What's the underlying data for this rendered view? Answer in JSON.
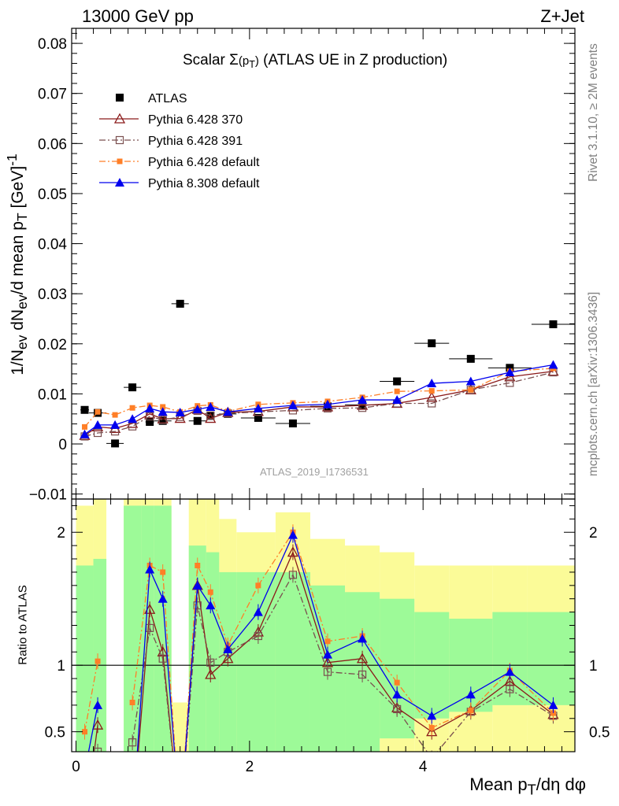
{
  "header": {
    "left": "13000 GeV pp",
    "right": "Z+Jet"
  },
  "side_text": {
    "rivet": "Rivet 3.1.10, ≥ 2M events",
    "mcplots": "mcplots.cern.ch [arXiv:1306.3436]"
  },
  "watermark": "ATLAS_2019_I1736531",
  "ratio_ylabel": "Ratio to ATLAS",
  "colors": {
    "atlas": "#000000",
    "p370": "#8b1a1a",
    "p391": "#7a4f4f",
    "p6def": "#ff7f27",
    "p8def": "#0000ee",
    "band_inner": "#9dfa98",
    "band_outer": "#fbfb98"
  },
  "chart_data": [
    {
      "type": "scatter",
      "title": "Scalar Σ(p_T) (ATLAS UE in Z production)",
      "xlabel": "Mean p_T/dη dφ",
      "ylabel": "1/N_ev dN_ev/d mean p_T [GeV]^-1",
      "xlim": [
        -0.05,
        5.75
      ],
      "ylim": [
        -0.011,
        0.083
      ],
      "grid": false,
      "legend": "top-left",
      "x": [
        0.1,
        0.25,
        0.45,
        0.65,
        0.85,
        1.0,
        1.2,
        1.4,
        1.55,
        1.75,
        2.1,
        2.5,
        2.9,
        3.3,
        3.7,
        4.1,
        4.55,
        5.0,
        5.5
      ],
      "x_err": [
        0.05,
        0.1,
        0.1,
        0.1,
        0.05,
        0.1,
        0.1,
        0.1,
        0.05,
        0.1,
        0.2,
        0.2,
        0.2,
        0.2,
        0.2,
        0.2,
        0.25,
        0.25,
        0.25
      ],
      "series": [
        {
          "name": "ATLAS",
          "key": "atlas",
          "line": "none",
          "marker": "filled-square",
          "values": [
            0.0068,
            0.0062,
            0.0001,
            0.0113,
            0.0044,
            0.0046,
            0.028,
            0.0046,
            0.0056,
            0.006,
            0.0052,
            0.0041,
            0.0075,
            0.0078,
            0.0125,
            0.0201,
            0.017,
            0.0152,
            0.0239
          ],
          "errors": [
            0.0003,
            0.0003,
            0.0003,
            0.0004,
            0.0003,
            0.0003,
            0.0005,
            0.0003,
            0.0003,
            0.0003,
            0.0003,
            0.0003,
            0.0003,
            0.0003,
            0.0004,
            0.0005,
            0.0004,
            0.0004,
            0.0005
          ]
        },
        {
          "name": "Pythia 6.428 370",
          "key": "p370",
          "line": "solid",
          "marker": "open-triangle",
          "values": [
            0.0017,
            0.0034,
            0.0031,
            0.0041,
            0.006,
            0.005,
            0.0051,
            0.0069,
            0.0051,
            0.0063,
            0.0065,
            0.0074,
            0.0074,
            0.0077,
            0.0081,
            0.0093,
            0.0108,
            0.0134,
            0.0145
          ]
        },
        {
          "name": "Pythia 6.428 391",
          "key": "p391",
          "line": "dashdot",
          "marker": "open-square",
          "values": [
            0.0015,
            0.0022,
            0.0025,
            0.0035,
            0.0055,
            0.0048,
            0.0054,
            0.0066,
            0.0057,
            0.0061,
            0.0064,
            0.0067,
            0.0071,
            0.0072,
            0.0081,
            0.0081,
            0.0108,
            0.0122,
            0.0143
          ]
        },
        {
          "name": "Pythia 6.428 default",
          "key": "p6def",
          "line": "dashdot",
          "marker": "filled-small-square",
          "values": [
            0.0034,
            0.0064,
            0.0058,
            0.0072,
            0.0077,
            0.0074,
            0.0064,
            0.0076,
            0.0078,
            0.0065,
            0.0079,
            0.0082,
            0.0085,
            0.0093,
            0.0105,
            0.0106,
            0.0108,
            0.0145,
            0.0151
          ]
        },
        {
          "name": "Pythia 8.308 default",
          "key": "p8def",
          "line": "solid",
          "marker": "filled-triangle",
          "values": [
            0.0019,
            0.0038,
            0.0038,
            0.005,
            0.0071,
            0.0064,
            0.0063,
            0.0069,
            0.0074,
            0.0064,
            0.0071,
            0.0077,
            0.0079,
            0.0088,
            0.0088,
            0.0121,
            0.0125,
            0.0143,
            0.0158
          ]
        }
      ]
    },
    {
      "type": "line",
      "ylabel": "Ratio to ATLAS",
      "xlabel": "Mean p_T/dη dφ",
      "xlim": [
        -0.05,
        5.75
      ],
      "ylim": [
        0.35,
        2.25
      ],
      "reference_line": 1,
      "x": [
        0.1,
        0.25,
        0.45,
        0.65,
        0.85,
        1.0,
        1.2,
        1.4,
        1.55,
        1.75,
        2.1,
        2.5,
        2.9,
        3.3,
        3.7,
        4.1,
        4.55,
        5.0,
        5.5
      ],
      "bands": {
        "edges": [
          0.0,
          0.2,
          0.35,
          0.55,
          0.75,
          0.9,
          1.1,
          1.3,
          1.5,
          1.65,
          1.85,
          2.3,
          2.7,
          3.1,
          3.5,
          3.9,
          4.3,
          4.8,
          5.2,
          5.8
        ],
        "inner": [
          [
            0.35,
            1.75
          ],
          [
            0.35,
            1.8
          ],
          [
            null,
            null
          ],
          [
            0.35,
            2.2
          ],
          [
            0.35,
            2.2
          ],
          [
            0.35,
            2.2
          ],
          [
            null,
            null
          ],
          [
            0.35,
            1.9
          ],
          [
            0.35,
            1.85
          ],
          [
            0.35,
            1.7
          ],
          [
            0.35,
            1.7
          ],
          [
            0.35,
            1.7
          ],
          [
            0.35,
            1.6
          ],
          [
            0.35,
            1.55
          ],
          [
            0.45,
            1.5
          ],
          [
            0.6,
            1.4
          ],
          [
            0.65,
            1.35
          ],
          [
            0.7,
            1.4
          ],
          [
            0.7,
            1.4
          ]
        ],
        "outer": [
          [
            0.35,
            2.2
          ],
          [
            0.35,
            2.25
          ],
          [
            null,
            null
          ],
          [
            0.35,
            2.25
          ],
          [
            0.35,
            2.25
          ],
          [
            0.35,
            2.25
          ],
          [
            0.35,
            0.72
          ],
          [
            0.35,
            2.25
          ],
          [
            0.35,
            2.25
          ],
          [
            0.35,
            2.1
          ],
          [
            0.35,
            2.0
          ],
          [
            0.35,
            2.15
          ],
          [
            0.35,
            1.95
          ],
          [
            0.35,
            1.9
          ],
          [
            0.35,
            1.85
          ],
          [
            0.35,
            1.75
          ],
          [
            0.35,
            1.75
          ],
          [
            0.35,
            1.75
          ],
          [
            0.35,
            1.75
          ]
        ]
      },
      "series": [
        {
          "name": "Pythia 6.428 370",
          "key": "p370",
          "line": "solid",
          "marker": "open-triangle",
          "values": [
            -0.2,
            0.55,
            null,
            -0.2,
            1.42,
            1.1,
            -0.2,
            1.6,
            0.93,
            1.05,
            1.25,
            1.85,
            1.02,
            1.05,
            0.68,
            0.5,
            0.66,
            0.88,
            0.63
          ]
        },
        {
          "name": "Pythia 6.428 391",
          "key": "p391",
          "line": "dashdot",
          "marker": "open-square",
          "values": [
            -0.2,
            0.35,
            null,
            0.42,
            1.28,
            1.05,
            -0.2,
            1.45,
            1.02,
            1.1,
            1.22,
            1.68,
            0.95,
            0.93,
            0.67,
            0.3,
            0.65,
            0.82,
            0.62
          ]
        },
        {
          "name": "Pythia 6.428 default",
          "key": "p6def",
          "line": "dashdot",
          "marker": "filled-small-square",
          "values": [
            0.5,
            1.03,
            null,
            0.72,
            1.75,
            1.7,
            -0.2,
            1.75,
            1.55,
            1.15,
            1.6,
            2.0,
            1.18,
            1.22,
            0.87,
            0.53,
            0.66,
            0.96,
            0.64
          ]
        },
        {
          "name": "Pythia 8.308 default",
          "key": "p8def",
          "line": "solid",
          "marker": "filled-triangle",
          "values": [
            0.2,
            0.7,
            null,
            -0.2,
            1.72,
            1.5,
            -0.2,
            1.6,
            1.45,
            1.12,
            1.4,
            1.98,
            1.08,
            1.2,
            0.78,
            0.62,
            0.78,
            0.95,
            0.7
          ]
        }
      ]
    }
  ]
}
